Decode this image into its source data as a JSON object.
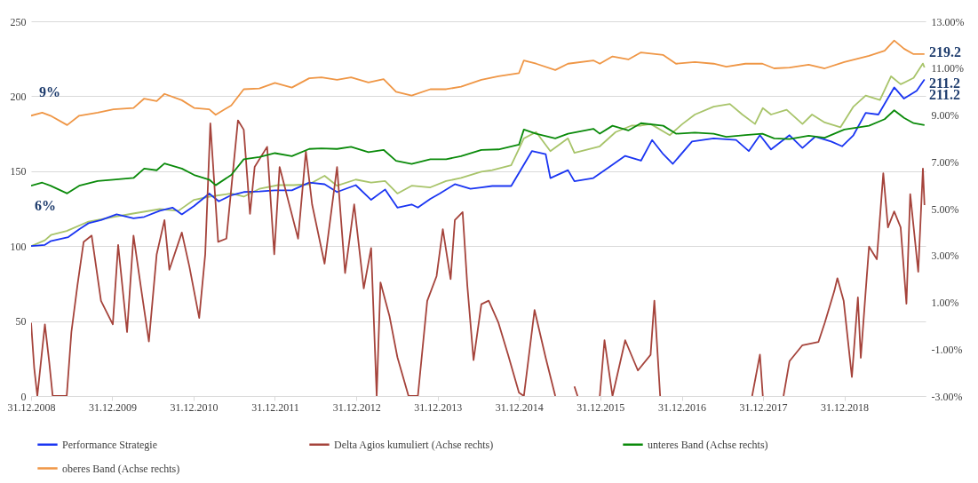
{
  "chart_data": {
    "type": "line",
    "xlim": [
      "2008-12-31",
      "2019-12-31"
    ],
    "xticks": [
      {
        "value": "2008-12-31",
        "label": "31.12.2008"
      },
      {
        "value": "2009-12-31",
        "label": "31.12.2009"
      },
      {
        "value": "2010-12-31",
        "label": "31.12.2010"
      },
      {
        "value": "2011-12-31",
        "label": "31.12.2011"
      },
      {
        "value": "2012-12-31",
        "label": "31.12.2012"
      },
      {
        "value": "2013-12-31",
        "label": "31.12.2013"
      },
      {
        "value": "2014-12-31",
        "label": "31.12.2014"
      },
      {
        "value": "2015-12-31",
        "label": "31.12.2015"
      },
      {
        "value": "2016-12-31",
        "label": "31.12.2016"
      },
      {
        "value": "2017-12-31",
        "label": "31.12.2017"
      },
      {
        "value": "2018-12-31",
        "label": "31.12.2018"
      }
    ],
    "ylim": [
      0,
      250
    ],
    "yticks": [
      0,
      50,
      100,
      150,
      200,
      250
    ],
    "y2lim": [
      -3,
      13
    ],
    "y2ticks": [
      {
        "value": -3,
        "label": "-3.00%"
      },
      {
        "value": -1,
        "label": "-1.00%"
      },
      {
        "value": 1,
        "label": "1.00%"
      },
      {
        "value": 3,
        "label": "3.00%"
      },
      {
        "value": 5,
        "label": "5.00%"
      },
      {
        "value": 7,
        "label": "7.00%"
      },
      {
        "value": 9,
        "label": "9.00%"
      },
      {
        "value": 11,
        "label": "11.00%"
      },
      {
        "value": 13,
        "label": "13.00%"
      }
    ],
    "grid": "y",
    "legend": "bottom",
    "x": [
      "2008-12-31",
      "2009-02-19",
      "2009-03-28",
      "2009-06-11",
      "2009-08-04",
      "2009-10-26",
      "2010-01-05",
      "2010-04-05",
      "2010-05-23",
      "2010-07-18",
      "2010-08-22",
      "2010-11-08",
      "2011-01-02",
      "2011-03-11",
      "2011-04-09",
      "2011-06-18",
      "2011-08-13",
      "2011-10-22",
      "2011-12-31",
      "2012-03-16",
      "2012-06-02",
      "2012-07-27",
      "2012-10-05",
      "2012-12-07",
      "2013-02-23",
      "2013-05-02",
      "2013-06-27",
      "2013-09-05",
      "2013-11-28",
      "2014-02-07",
      "2014-04-15",
      "2014-07-15",
      "2014-09-30",
      "2014-12-31",
      "2015-01-22",
      "2015-03-18",
      "2015-06-12",
      "2015-08-08",
      "2015-11-30",
      "2015-12-29",
      "2016-02-24",
      "2016-05-05",
      "2016-07-01",
      "2016-10-09",
      "2016-12-05",
      "2017-02-28",
      "2017-05-23",
      "2017-07-19",
      "2017-10-13",
      "2017-12-28",
      "2018-02-19",
      "2018-04-29",
      "2018-07-24",
      "2018-10-04",
      "2018-12-31",
      "2019-04-21",
      "2019-06-30",
      "2019-08-12",
      "2019-09-25",
      "2019-11-07",
      "2019-12-26"
    ],
    "series": [
      {
        "color": "#a8c46a",
        "x": [
          "2008-12-31",
          "2009-03-03",
          "2009-03-30",
          "2009-06-09",
          "2009-09-15",
          "2010-01-05",
          "2010-03-28",
          "2010-08-01",
          "2010-10-24",
          "2011-01-02",
          "2011-03-11",
          "2011-06-18",
          "2011-08-13",
          "2011-10-22",
          "2012-01-14",
          "2012-03-23",
          "2012-06-02",
          "2012-08-10",
          "2012-10-05",
          "2012-12-28",
          "2013-03-07",
          "2013-05-09",
          "2013-07-03",
          "2013-09-05",
          "2013-11-28",
          "2014-02-07",
          "2014-04-15",
          "2014-07-15",
          "2014-09-02",
          "2014-11-26",
          "2015-01-22",
          "2015-03-18",
          "2015-05-21",
          "2015-08-08",
          "2015-09-06",
          "2015-12-29",
          "2016-03-09",
          "2016-05-19",
          "2016-07-01",
          "2016-08-13",
          "2016-11-07",
          "2017-01-03",
          "2017-02-28",
          "2017-05-23",
          "2017-08-04",
          "2017-09-29",
          "2017-11-25",
          "2017-12-30",
          "2018-02-05",
          "2018-04-16",
          "2018-06-26",
          "2018-08-08",
          "2018-10-04",
          "2018-12-14",
          "2019-02-10",
          "2019-04-06",
          "2019-06-09",
          "2019-07-29",
          "2019-09-10",
          "2019-11-07",
          "2019-12-19",
          "2019-12-26"
        ],
        "values": [
          100,
          103.9,
          107.4,
          110.1,
          116.4,
          119.5,
          121.6,
          124.7,
          123.6,
          130.9,
          133,
          135.1,
          133,
          138.2,
          140.7,
          140.7,
          141.3,
          146.9,
          140.3,
          144.4,
          142.4,
          143.4,
          135.1,
          140.3,
          139.2,
          143.4,
          145.5,
          149.6,
          150.7,
          153.9,
          171.9,
          176.1,
          163.4,
          171.9,
          162.3,
          166.6,
          176.1,
          180.4,
          180.4,
          181.5,
          174,
          181.5,
          187.8,
          193.1,
          194.8,
          187.8,
          181.5,
          192.1,
          187.8,
          191,
          181.5,
          187.8,
          182.5,
          179.3,
          193.1,
          200.5,
          197.5,
          213.3,
          208,
          212.2,
          221.8,
          219.2
        ]
      },
      {
        "name": "Performance Strategie",
        "color": "#1a35f2",
        "x": [
          "2008-12-31",
          "2009-03-03",
          "2009-03-28",
          "2009-06-16",
          "2009-08-04",
          "2009-09-15",
          "2009-11-10",
          "2010-01-19",
          "2010-04-05",
          "2010-05-23",
          "2010-08-01",
          "2010-09-27",
          "2010-11-08",
          "2011-01-02",
          "2011-03-11",
          "2011-04-23",
          "2011-06-18",
          "2011-08-13",
          "2011-10-22",
          "2011-12-31",
          "2012-03-16",
          "2012-06-02",
          "2012-08-10",
          "2012-10-05",
          "2012-12-28",
          "2013-03-07",
          "2013-05-09",
          "2013-07-03",
          "2013-09-05",
          "2013-10-03",
          "2013-11-28",
          "2014-01-09",
          "2014-03-18",
          "2014-05-27",
          "2014-07-15",
          "2014-09-02",
          "2014-11-26",
          "2015-02-27",
          "2015-04-30",
          "2015-05-21",
          "2015-08-08",
          "2015-09-06",
          "2015-11-30",
          "2016-02-10",
          "2016-04-21",
          "2016-07-01",
          "2016-08-20",
          "2016-10-09",
          "2016-11-21",
          "2017-02-15",
          "2017-05-23",
          "2017-09-01",
          "2017-10-28",
          "2017-12-17",
          "2018-02-05",
          "2018-04-29",
          "2018-06-26",
          "2018-08-22",
          "2018-11-02",
          "2018-12-21",
          "2019-02-10",
          "2019-04-06",
          "2019-06-02",
          "2019-08-12",
          "2019-09-25",
          "2019-11-21",
          "2019-12-26"
        ],
        "values": [
          100,
          100.8,
          103.3,
          106,
          111.2,
          115.3,
          117.4,
          121.2,
          118.5,
          119.5,
          123.6,
          125.7,
          121.2,
          126.8,
          135.1,
          129.9,
          134,
          136.1,
          136.5,
          137.2,
          137.2,
          142.4,
          141.3,
          136.1,
          140.7,
          130.9,
          137.8,
          125.7,
          127.8,
          125.7,
          131.5,
          135.1,
          141.3,
          138.2,
          139.2,
          140.1,
          140.1,
          163.4,
          161.3,
          145.4,
          150.7,
          143.3,
          145.4,
          152.8,
          160.2,
          157,
          170.8,
          161.3,
          154.9,
          169.8,
          171.9,
          170.8,
          163.4,
          174,
          164.5,
          174,
          165.5,
          173,
          169.8,
          166.6,
          174,
          188.9,
          187.8,
          205.9,
          198.4,
          203.7,
          211.2
        ]
      },
      {
        "name": "Delta Agios kumuliert (Achse rechts)",
        "color": "#a5433b",
        "axis": "y2",
        "x": [
          "2008-12-31",
          "2009-01-14",
          "2009-01-28",
          "2009-03-03",
          "2009-03-23",
          "2009-04-07",
          "2009-06-09",
          "2009-06-30",
          "2009-07-27",
          "2009-08-24",
          "2009-09-29",
          "2009-11-10",
          "2010-01-02",
          "2010-01-26",
          "2010-03-07",
          "2010-04-05",
          "2010-05-09",
          "2010-06-13",
          "2010-07-18",
          "2010-08-22",
          "2010-09-13",
          "2010-11-08",
          "2010-12-12",
          "2011-01-25",
          "2011-02-21",
          "2011-03-16",
          "2011-04-20",
          "2011-05-27",
          "2011-07-18",
          "2011-08-13",
          "2011-09-10",
          "2011-10-01",
          "2011-11-26",
          "2011-12-28",
          "2012-01-21",
          "2012-04-13",
          "2012-05-18",
          "2012-06-15",
          "2012-08-10",
          "2012-10-05",
          "2012-11-10",
          "2012-12-21",
          "2013-02-02",
          "2013-03-07",
          "2013-04-01",
          "2013-04-18",
          "2013-05-29",
          "2013-07-03",
          "2013-08-22",
          "2013-10-03",
          "2013-11-14",
          "2013-12-26",
          "2014-01-23",
          "2014-02-27",
          "2014-03-18",
          "2014-04-22",
          "2014-05-13",
          "2014-06-10",
          "2014-07-15",
          "2014-08-17",
          "2014-09-30",
          "2014-11-12",
          "2014-12-31",
          "2015-01-22",
          "2015-03-11",
          "2015-04-30",
          "2015-06-12",
          "2015-07-24",
          "2015-09-06",
          "2015-09-20",
          "2015-11-01",
          "2015-12-29",
          "2016-01-19",
          "2016-02-24",
          "2016-04-21",
          "2016-06-17",
          "2016-08-13",
          "2016-08-30",
          "2016-09-25",
          "2017-05-01",
          "2017-11-12",
          "2017-12-17",
          "2017-12-30",
          "2018-02-15",
          "2018-04-02",
          "2018-04-29",
          "2018-06-26",
          "2018-09-06",
          "2018-10-04",
          "2018-11-16",
          "2018-11-30",
          "2018-12-28",
          "2019-02-03",
          "2019-03-02",
          "2019-03-15",
          "2019-04-06",
          "2019-04-21",
          "2019-05-26",
          "2019-06-24",
          "2019-07-15",
          "2019-08-12",
          "2019-09-10",
          "2019-10-06",
          "2019-10-23",
          "2019-11-28",
          "2019-12-19",
          "2019-12-26"
        ],
        "values": [
          0.13,
          -1.8,
          -3,
          0.06,
          -1.6,
          -3,
          -3,
          -0.27,
          1.72,
          3.58,
          3.85,
          1.06,
          0.06,
          3.45,
          -0.27,
          3.85,
          1.59,
          -0.67,
          3.05,
          4.51,
          2.39,
          3.98,
          2.52,
          0.33,
          3.05,
          8.64,
          3.58,
          3.72,
          8.77,
          8.37,
          4.78,
          6.78,
          7.64,
          3.05,
          6.78,
          3.72,
          7.44,
          5.18,
          2.65,
          6.78,
          2.25,
          5.18,
          1.59,
          3.32,
          -3,
          1.85,
          0.39,
          -1.34,
          -3,
          -3,
          1.06,
          2.12,
          4.12,
          1.99,
          4.51,
          4.85,
          1.72,
          -1.47,
          0.92,
          1.07,
          0.12,
          -1.24,
          -2.86,
          -3,
          0.67,
          -1.37,
          -3,
          null,
          -2.59,
          -3,
          null,
          -3,
          -0.62,
          -3,
          -0.62,
          -1.91,
          -1.24,
          1.07,
          -3,
          null,
          -3,
          -1.23,
          -3,
          null,
          -3,
          -1.51,
          -0.83,
          -0.69,
          0.12,
          1.48,
          2.03,
          1.07,
          -2.19,
          1.21,
          -1.37,
          1.48,
          3.38,
          2.84,
          6.51,
          4.2,
          4.88,
          4.2,
          0.94,
          5.62,
          2.3,
          6.71,
          5.15
        ]
      },
      {
        "name": "unteres Band (Achse rechts)",
        "color": "#0a8a0a",
        "axis": "y2",
        "values": [
          5.98,
          6.11,
          5.98,
          5.65,
          5.98,
          6.18,
          6.24,
          6.31,
          6.71,
          6.64,
          6.93,
          6.71,
          6.44,
          6.24,
          6.0,
          6.44,
          7.11,
          7.2,
          7.37,
          7.24,
          7.55,
          7.57,
          7.55,
          7.64,
          7.41,
          7.51,
          7.04,
          6.91,
          7.11,
          7.11,
          7.24,
          7.51,
          7.53,
          7.73,
          8.38,
          8.2,
          8.0,
          8.2,
          8.41,
          8.2,
          8.54,
          8.34,
          8.65,
          8.54,
          8.2,
          8.25,
          8.2,
          8.07,
          8.14,
          8.2,
          8.0,
          7.97,
          8.11,
          8.03,
          8.38,
          8.54,
          8.82,
          9.2,
          8.88,
          8.65,
          8.57
        ]
      },
      {
        "name": "oberes Band (Achse rechts)",
        "color": "#ef9645",
        "axis": "y2",
        "values": [
          8.97,
          9.1,
          8.97,
          8.57,
          8.97,
          9.1,
          9.24,
          9.3,
          9.7,
          9.59,
          9.9,
          9.63,
          9.3,
          9.24,
          9.01,
          9.41,
          10.1,
          10.13,
          10.37,
          10.17,
          10.57,
          10.61,
          10.5,
          10.61,
          10.39,
          10.53,
          9.99,
          9.83,
          10.1,
          10.1,
          10.21,
          10.5,
          10.65,
          10.79,
          11.33,
          11.19,
          10.92,
          11.19,
          11.33,
          11.19,
          11.5,
          11.37,
          11.67,
          11.56,
          11.19,
          11.26,
          11.19,
          11.06,
          11.19,
          11.19,
          10.99,
          11.02,
          11.15,
          10.99,
          11.26,
          11.53,
          11.74,
          12.18,
          11.83,
          11.6,
          11.6
        ]
      }
    ],
    "annotations": [
      "9%",
      "6%",
      {
        "text": "219.2",
        "x": "2019-12-31",
        "y": 229
      },
      {
        "text": "211.2",
        "x": "2019-12-31",
        "y": 208.5
      },
      "211.2"
    ]
  }
}
